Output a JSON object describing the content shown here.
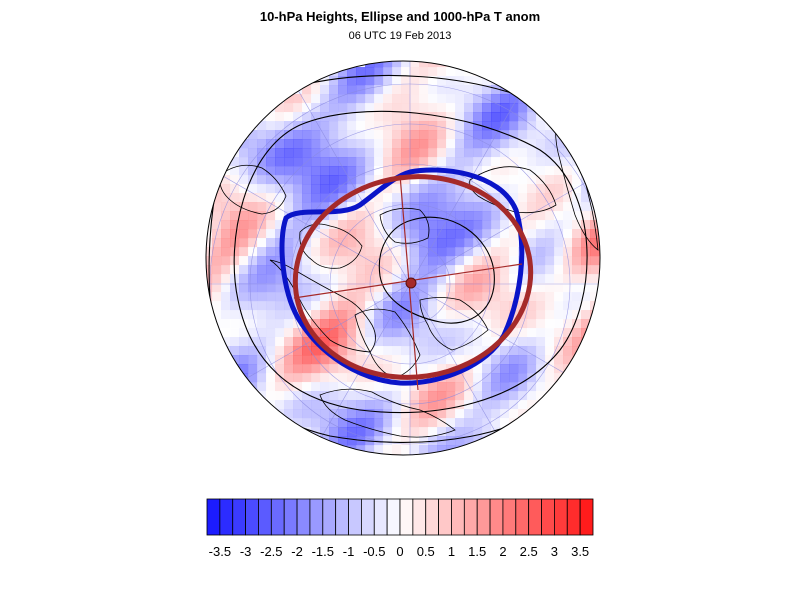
{
  "title": "10-hPa Heights, Ellipse and 1000-hPa T anom",
  "subtitle": "06 UTC 19 Feb 2013",
  "colors": {
    "blue": "#1414ff",
    "white": "#ffffff",
    "red": "#ff1414",
    "vortex_contour": "#0a14c8",
    "ellipse": "#a52a2a",
    "height_contour": "#000000",
    "coastline": "#000000",
    "graticule": "#8a8ae0"
  },
  "colorbar": {
    "levels": [
      -3.75,
      -3.5,
      -3.25,
      -3,
      -2.75,
      -2.5,
      -2.25,
      -2,
      -1.75,
      -1.5,
      -1.25,
      -1,
      -0.75,
      -0.5,
      -0.25,
      0,
      0.25,
      0.5,
      0.75,
      1,
      1.25,
      1.5,
      1.75,
      2,
      2.25,
      2.5,
      2.75,
      3,
      3.25,
      3.5,
      3.75
    ],
    "tick_labels": [
      "-3.5",
      "-3",
      "-2.5",
      "-2",
      "-1.5",
      "-1",
      "-0.5",
      "0",
      "0.5",
      "1",
      "1.5",
      "2",
      "2.5",
      "3",
      "3.5"
    ]
  }
}
